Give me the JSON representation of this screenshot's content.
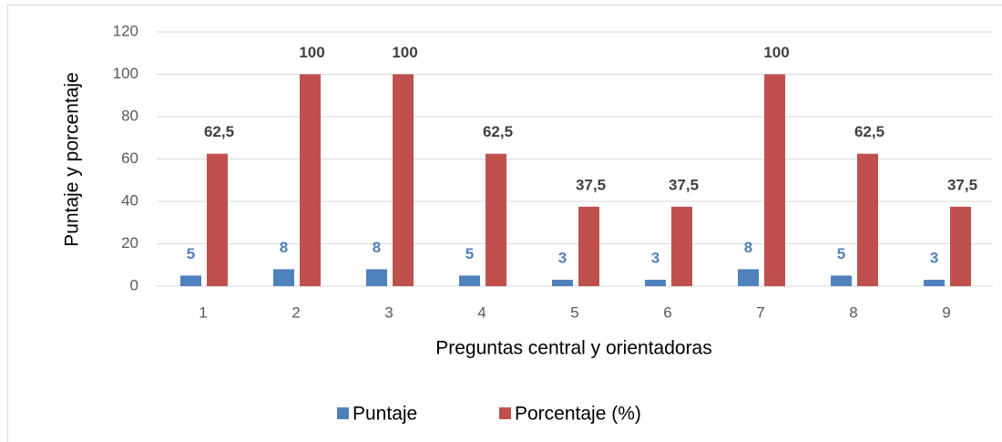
{
  "chart_data": {
    "type": "bar",
    "categories": [
      "1",
      "2",
      "3",
      "4",
      "5",
      "6",
      "7",
      "8",
      "9"
    ],
    "series": [
      {
        "name": "Puntaje",
        "color": "#4f81bd",
        "values": [
          5,
          8,
          8,
          5,
          3,
          3,
          8,
          5,
          3
        ]
      },
      {
        "name": "Porcentaje (%)",
        "color": "#c0504d",
        "values": [
          62.5,
          100,
          100,
          62.5,
          37.5,
          37.5,
          100,
          62.5,
          37.5
        ],
        "value_labels": [
          "62,5",
          "100",
          "100",
          "62,5",
          "37,5",
          "37,5",
          "100",
          "62,5",
          "37,5"
        ]
      }
    ],
    "xlabel": "Preguntas central y orientadoras",
    "ylabel": "Puntaje y porcentaje",
    "ylim": [
      0,
      120
    ],
    "yticks": [
      0,
      20,
      40,
      60,
      80,
      100,
      120
    ],
    "grid": true,
    "legend": "bottom"
  }
}
